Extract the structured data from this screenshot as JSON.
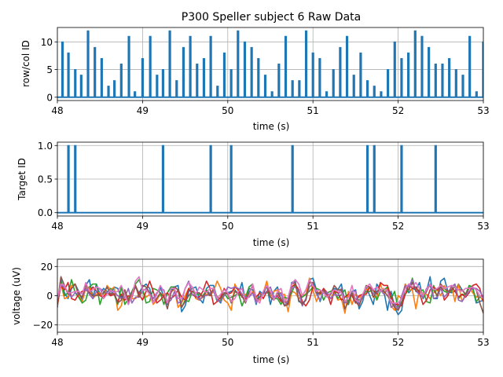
{
  "title": "P300 Speller subject 6 Raw Data",
  "colors": {
    "blue": "#1f77b4",
    "orange": "#ff7f0e",
    "green": "#2ca02c",
    "red": "#d62728",
    "purple": "#9467bd",
    "brown": "#8c564b",
    "pink": "#e377c2",
    "grid": "#b0b0b0"
  },
  "chart_data": [
    {
      "type": "line",
      "title": "P300 Speller subject 6 Raw Data",
      "xlabel": "time (s)",
      "ylabel": "row/col ID",
      "xlim": [
        48,
        53
      ],
      "ylim": [
        -0.6,
        12.6
      ],
      "xticks": [
        "48",
        "49",
        "50",
        "51",
        "52",
        "53"
      ],
      "yticks": [
        "0",
        "5",
        "10"
      ],
      "grid": true,
      "pulse_width": 0.02,
      "pulses": [
        {
          "t": 48.06,
          "v": 10
        },
        {
          "t": 48.13,
          "v": 8
        },
        {
          "t": 48.21,
          "v": 5
        },
        {
          "t": 48.28,
          "v": 4
        },
        {
          "t": 48.36,
          "v": 12
        },
        {
          "t": 48.44,
          "v": 9
        },
        {
          "t": 48.52,
          "v": 7
        },
        {
          "t": 48.6,
          "v": 2
        },
        {
          "t": 48.67,
          "v": 3
        },
        {
          "t": 48.75,
          "v": 6
        },
        {
          "t": 48.84,
          "v": 11
        },
        {
          "t": 48.91,
          "v": 1
        },
        {
          "t": 49.0,
          "v": 7
        },
        {
          "t": 49.09,
          "v": 11
        },
        {
          "t": 49.17,
          "v": 4
        },
        {
          "t": 49.24,
          "v": 5
        },
        {
          "t": 49.32,
          "v": 12
        },
        {
          "t": 49.4,
          "v": 3
        },
        {
          "t": 49.48,
          "v": 9
        },
        {
          "t": 49.56,
          "v": 11
        },
        {
          "t": 49.64,
          "v": 6
        },
        {
          "t": 49.72,
          "v": 7
        },
        {
          "t": 49.8,
          "v": 11
        },
        {
          "t": 49.88,
          "v": 2
        },
        {
          "t": 49.96,
          "v": 8
        },
        {
          "t": 50.04,
          "v": 5
        },
        {
          "t": 50.12,
          "v": 12
        },
        {
          "t": 50.2,
          "v": 10
        },
        {
          "t": 50.28,
          "v": 9
        },
        {
          "t": 50.36,
          "v": 7
        },
        {
          "t": 50.44,
          "v": 4
        },
        {
          "t": 50.52,
          "v": 1
        },
        {
          "t": 50.6,
          "v": 6
        },
        {
          "t": 50.68,
          "v": 11
        },
        {
          "t": 50.76,
          "v": 3
        },
        {
          "t": 50.84,
          "v": 3
        },
        {
          "t": 50.92,
          "v": 12
        },
        {
          "t": 51.0,
          "v": 8
        },
        {
          "t": 51.08,
          "v": 7
        },
        {
          "t": 51.16,
          "v": 1
        },
        {
          "t": 51.24,
          "v": 5
        },
        {
          "t": 51.32,
          "v": 9
        },
        {
          "t": 51.4,
          "v": 11
        },
        {
          "t": 51.48,
          "v": 4
        },
        {
          "t": 51.56,
          "v": 8
        },
        {
          "t": 51.64,
          "v": 3
        },
        {
          "t": 51.72,
          "v": 2
        },
        {
          "t": 51.8,
          "v": 1
        },
        {
          "t": 51.88,
          "v": 5
        },
        {
          "t": 51.96,
          "v": 10
        },
        {
          "t": 52.04,
          "v": 7
        },
        {
          "t": 52.12,
          "v": 8
        },
        {
          "t": 52.2,
          "v": 12
        },
        {
          "t": 52.28,
          "v": 11
        },
        {
          "t": 52.36,
          "v": 9
        },
        {
          "t": 52.44,
          "v": 6
        },
        {
          "t": 52.52,
          "v": 6
        },
        {
          "t": 52.6,
          "v": 7
        },
        {
          "t": 52.68,
          "v": 5
        },
        {
          "t": 52.76,
          "v": 4
        },
        {
          "t": 52.84,
          "v": 11
        },
        {
          "t": 52.92,
          "v": 1
        },
        {
          "t": 53.0,
          "v": 10
        }
      ]
    },
    {
      "type": "line",
      "xlabel": "time (s)",
      "ylabel": "Target ID",
      "xlim": [
        48,
        53
      ],
      "ylim": [
        -0.05,
        1.05
      ],
      "xticks": [
        "48",
        "49",
        "50",
        "51",
        "52",
        "53"
      ],
      "yticks": [
        "0.0",
        "0.5",
        "1.0"
      ],
      "grid": true,
      "pulse_width": 0.02,
      "pulses": [
        {
          "t": 48.13,
          "v": 1
        },
        {
          "t": 48.21,
          "v": 1
        },
        {
          "t": 49.24,
          "v": 1
        },
        {
          "t": 49.8,
          "v": 1
        },
        {
          "t": 50.04,
          "v": 1
        },
        {
          "t": 50.76,
          "v": 1
        },
        {
          "t": 51.64,
          "v": 1
        },
        {
          "t": 51.72,
          "v": 1
        },
        {
          "t": 52.04,
          "v": 1
        },
        {
          "t": 52.44,
          "v": 1
        }
      ]
    },
    {
      "type": "line",
      "xlabel": "time (s)",
      "ylabel": "voltage (uV)",
      "xlim": [
        48,
        53
      ],
      "ylim": [
        -25,
        25
      ],
      "xticks": [
        "48",
        "49",
        "50",
        "51",
        "52",
        "53"
      ],
      "yticks": [
        "−20",
        "0",
        "20"
      ],
      "grid": true,
      "series": [
        {
          "color": "#1f77b4",
          "seed": 11,
          "values": [
            -8,
            11,
            2,
            -2,
            5,
            8,
            3,
            -3,
            7,
            11,
            -1,
            8,
            1,
            5,
            3,
            0,
            6,
            5,
            -1,
            3,
            -6,
            1,
            6,
            2,
            6,
            8,
            5,
            -5,
            1,
            6,
            -1,
            -6,
            4,
            6,
            7,
            -11,
            -7,
            3,
            5,
            6,
            -2,
            -5,
            5,
            7,
            7,
            -2,
            -5,
            2,
            2,
            3,
            4,
            1,
            9,
            -4,
            5,
            4,
            -6,
            3,
            1,
            7,
            -6,
            3,
            6,
            -3,
            -4,
            -5,
            9,
            10,
            -4,
            -5,
            -3,
            11,
            12,
            4,
            -4,
            3,
            1,
            1,
            5,
            4,
            8,
            -4,
            -6,
            3,
            4,
            -9,
            -4,
            6,
            0,
            -6,
            8,
            4,
            3,
            -10,
            3,
            -8,
            -13,
            -10,
            8,
            2,
            5,
            4,
            9,
            -2,
            3,
            13,
            -2,
            -2,
            10,
            12,
            3,
            2,
            3,
            8,
            4,
            1,
            6,
            5,
            -5,
            -4,
            -3
          ]
        },
        {
          "color": "#ff7f0e",
          "seed": 23,
          "values": [
            -7,
            8,
            -2,
            -1,
            7,
            8,
            0,
            -4,
            5,
            6,
            -2,
            1,
            2,
            -2,
            7,
            4,
            6,
            -10,
            -7,
            4,
            -3,
            -2,
            -2,
            1,
            2,
            -1,
            1,
            -6,
            -3,
            1,
            1,
            -5,
            3,
            4,
            -8,
            -5,
            0,
            5,
            6,
            -2,
            -3,
            -1,
            1,
            0,
            3,
            10,
            5,
            -3,
            -5,
            -10,
            8,
            3,
            1,
            1,
            -1,
            3,
            -3,
            -3,
            2,
            10,
            -1,
            3,
            4,
            1,
            1,
            -11,
            3,
            2,
            -2,
            0,
            1,
            12,
            4,
            -4,
            3,
            2,
            0,
            -2,
            3,
            -3,
            -2,
            -12,
            3,
            -6,
            1,
            -1,
            0,
            4,
            6,
            -1,
            -1,
            8,
            1,
            6,
            -7,
            -10,
            0,
            -2,
            8,
            4,
            4,
            -9,
            5,
            1,
            1,
            -2,
            2,
            4,
            0,
            7,
            0,
            7,
            -4,
            8,
            -4,
            1,
            6,
            2,
            -1,
            0,
            -4
          ]
        },
        {
          "color": "#2ca02c",
          "seed": 37,
          "values": [
            -4,
            10,
            0,
            2,
            11,
            2,
            -1,
            -5,
            -3,
            6,
            8,
            8,
            -6,
            2,
            2,
            5,
            1,
            -6,
            6,
            -6,
            -2,
            3,
            8,
            11,
            5,
            -5,
            -4,
            5,
            4,
            2,
            -6,
            2,
            6,
            6,
            4,
            -8,
            -3,
            -4,
            3,
            1,
            1,
            0,
            4,
            1,
            4,
            -4,
            -3,
            2,
            -2,
            -1,
            0,
            2,
            -7,
            -1,
            6,
            8,
            -2,
            -1,
            2,
            2,
            2,
            -2,
            -2,
            -6,
            -1,
            -2,
            2,
            8,
            2,
            -1,
            1,
            3,
            6,
            5,
            4,
            -3,
            2,
            3,
            4,
            -2,
            1,
            4,
            -6,
            2,
            -2,
            -3,
            0,
            3,
            3,
            4,
            -3,
            3,
            4,
            6,
            -2,
            3,
            -9,
            -4,
            1,
            4,
            12,
            3,
            3,
            4,
            -4,
            -5,
            7,
            -1,
            6,
            3,
            2,
            3,
            7,
            -2,
            1,
            1,
            7,
            6,
            -4,
            -1,
            -1
          ]
        },
        {
          "color": "#d62728",
          "seed": 53,
          "values": [
            -6,
            7,
            4,
            9,
            -2,
            -3,
            1,
            3,
            4,
            2,
            6,
            3,
            0,
            -1,
            2,
            0,
            1,
            -4,
            1,
            -3,
            0,
            -1,
            7,
            1,
            -3,
            3,
            10,
            3,
            -5,
            -3,
            0,
            2,
            -2,
            0,
            4,
            -1,
            -3,
            5,
            1,
            -1,
            -1,
            3,
            10,
            5,
            -6,
            -4,
            -1,
            5,
            1,
            2,
            6,
            4,
            -1,
            -2,
            1,
            7,
            -1,
            2,
            -2,
            3,
            2,
            -1,
            0,
            -4,
            -4,
            -6,
            6,
            8,
            4,
            -4,
            -7,
            -3,
            6,
            3,
            1,
            5,
            2,
            -6,
            3,
            2,
            -3,
            -1,
            1,
            0,
            -5,
            0,
            1,
            1,
            6,
            4,
            1,
            9,
            7,
            7,
            -1,
            -6,
            -6,
            -7,
            1,
            8,
            5,
            6,
            2,
            -6,
            -3,
            4,
            6,
            4,
            7,
            -3,
            0,
            6,
            3,
            -1,
            1,
            -1,
            2,
            7,
            8,
            5,
            -4
          ]
        },
        {
          "color": "#9467bd",
          "seed": 71,
          "values": [
            -3,
            7,
            6,
            2,
            -1,
            2,
            1,
            -1,
            5,
            1,
            -2,
            3,
            5,
            3,
            2,
            3,
            3,
            0,
            -2,
            -1,
            5,
            -5,
            -1,
            -1,
            3,
            5,
            2,
            -2,
            2,
            4,
            4,
            -5,
            -3,
            3,
            -5,
            -4,
            5,
            10,
            1,
            0,
            -3,
            0,
            0,
            2,
            3,
            -3,
            -4,
            0,
            6,
            5,
            6,
            5,
            1,
            -1,
            -1,
            2,
            -5,
            -1,
            1,
            3,
            6,
            -1,
            -1,
            2,
            -7,
            -3,
            5,
            6,
            3,
            -7,
            -2,
            6,
            8,
            1,
            -3,
            3,
            2,
            -2,
            1,
            0,
            5,
            -5,
            -4,
            3,
            3,
            -6,
            -1,
            6,
            6,
            1,
            2,
            4,
            1,
            4,
            -8,
            -6,
            -9,
            0,
            7,
            6,
            11,
            3,
            1,
            -1,
            5,
            7,
            -2,
            -1,
            5,
            -1,
            2,
            6,
            8,
            -3,
            -4,
            0,
            3,
            5,
            5,
            3,
            -1
          ]
        },
        {
          "color": "#8c564b",
          "seed": 89,
          "values": [
            -5,
            13,
            7,
            1,
            5,
            8,
            1,
            -1,
            8,
            2,
            0,
            0,
            1,
            2,
            6,
            1,
            2,
            -5,
            -3,
            4,
            -4,
            2,
            7,
            -1,
            7,
            6,
            2,
            -4,
            -2,
            2,
            -1,
            -9,
            2,
            6,
            4,
            -8,
            -4,
            0,
            3,
            2,
            2,
            -1,
            3,
            0,
            5,
            -1,
            -2,
            2,
            1,
            -5,
            3,
            1,
            0,
            -5,
            2,
            7,
            -3,
            -1,
            2,
            7,
            -1,
            -3,
            2,
            -2,
            -7,
            -6,
            8,
            9,
            -3,
            -6,
            -3,
            9,
            9,
            2,
            2,
            4,
            -1,
            1,
            7,
            4,
            4,
            -9,
            -4,
            2,
            -4,
            -7,
            0,
            7,
            6,
            -1,
            3,
            4,
            3,
            0,
            -4,
            -8,
            -10,
            -5,
            6,
            4,
            9,
            3,
            4,
            0,
            3,
            8,
            4,
            0,
            8,
            5,
            3,
            4,
            6,
            4,
            4,
            1,
            5,
            6,
            4,
            -5,
            -12
          ]
        },
        {
          "color": "#e377c2",
          "seed": 97,
          "values": [
            -2,
            8,
            7,
            2,
            2,
            3,
            3,
            1,
            9,
            3,
            4,
            6,
            5,
            -2,
            1,
            4,
            2,
            3,
            7,
            1,
            -6,
            0,
            10,
            13,
            4,
            4,
            1,
            -5,
            1,
            7,
            3,
            -5,
            5,
            5,
            -2,
            -2,
            5,
            9,
            6,
            1,
            6,
            4,
            2,
            5,
            5,
            -2,
            1,
            4,
            2,
            -4,
            -2,
            3,
            5,
            -4,
            0,
            8,
            -2,
            -5,
            3,
            7,
            3,
            -3,
            3,
            5,
            -4,
            -1,
            8,
            11,
            8,
            0,
            4,
            11,
            7,
            3,
            4,
            2,
            -1,
            2,
            4,
            3,
            2,
            -4,
            -1,
            7,
            -3,
            -4,
            1,
            6,
            8,
            4,
            6,
            3,
            5,
            3,
            -5,
            -5,
            -5,
            -2,
            5,
            8,
            6,
            9,
            5,
            0,
            4,
            8,
            4,
            5,
            7,
            5,
            6,
            7,
            6,
            4,
            3,
            5,
            5,
            6,
            4,
            0,
            -2
          ]
        }
      ]
    }
  ]
}
